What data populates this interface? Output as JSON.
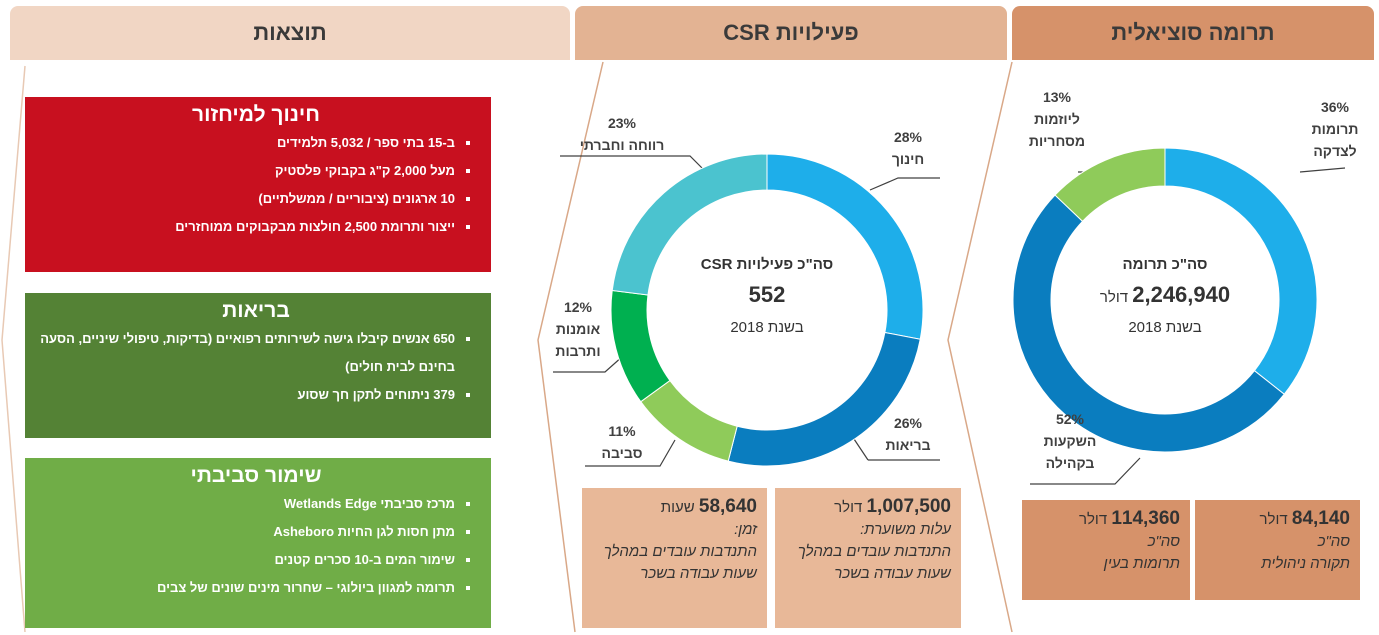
{
  "columns": {
    "results": "תוצאות",
    "csr": "פעילויות CSR",
    "social": "תרומה סוציאלית"
  },
  "chart_data": [
    {
      "type": "pie",
      "categories": [
        "תרומות לצדקה",
        "השקעות בקהילה",
        "ליוזמות מסחריות"
      ],
      "values": [
        36,
        52,
        13
      ],
      "value_labels": [
        "36%",
        "52%",
        "13%"
      ],
      "colors": [
        "#1eaeea",
        "#0a7dbf",
        "#8fcb5a"
      ],
      "center": {
        "title": "סה\"כ תרומה",
        "value": "2,246,940",
        "unit": "דולר",
        "year": "בשנת 2018"
      }
    },
    {
      "type": "pie",
      "categories": [
        "חינוך",
        "בריאות",
        "סביבה",
        "אומנות ותרבות",
        "רווחה וחברתי"
      ],
      "values": [
        28,
        26,
        11,
        12,
        23
      ],
      "value_labels": [
        "28%",
        "26%",
        "11%",
        "12%",
        "23%"
      ],
      "colors": [
        "#1eaeea",
        "#0a7dbf",
        "#8fcb5a",
        "#00b050",
        "#4bc3cf"
      ],
      "center": {
        "title": "סה\"כ פעילויות CSR",
        "value": 552,
        "year": "בשנת 2018"
      }
    }
  ],
  "social_boxes": [
    {
      "value": "84,140",
      "unit": "דולר",
      "line1": "סה\"כ",
      "line2": "תקורה ניהולית"
    },
    {
      "value": "114,360",
      "unit": "דולר",
      "line1": "סה\"כ",
      "line2": "תרומות בעין"
    }
  ],
  "csr_boxes": [
    {
      "value": "1,007,500",
      "unit": "דולר",
      "label": "עלות משוערת:",
      "text": "התנדבות עובדים במהלך שעות עבודה בשכר"
    },
    {
      "value": "58,640",
      "unit": "שעות",
      "label": "זמן:",
      "text": "התנדבות עובדים במהלך שעות עבודה בשכר"
    }
  ],
  "panels": [
    {
      "title": "חינוך למיחזור",
      "items": [
        "ב-15 בתי ספר / 5,032 תלמידים",
        "מעל 2,000 ק\"ג בקבוקי פלסטיק",
        "10 ארגונים (ציבוריים / ממשלתיים)",
        "ייצור ותרומת 2,500 חולצות מבקבוקים ממוחזרים"
      ]
    },
    {
      "title": "בריאות",
      "items": [
        "650 אנשים קיבלו גישה לשירותים רפואיים (בדיקות, טיפולי שיניים, הסעה בחינם לבית חולים)",
        "379 ניתוחים לתקן חך שסוע"
      ]
    },
    {
      "title": "שימור סביבתי",
      "items": [
        "מרכז סביבתי Wetlands Edge",
        "מתן חסות לגן החיות Asheboro",
        "שימור המים ב-10 סכרים קטנים",
        "תרומה למגוון ביולוגי – שחרור מינים שונים של צבים"
      ]
    }
  ]
}
